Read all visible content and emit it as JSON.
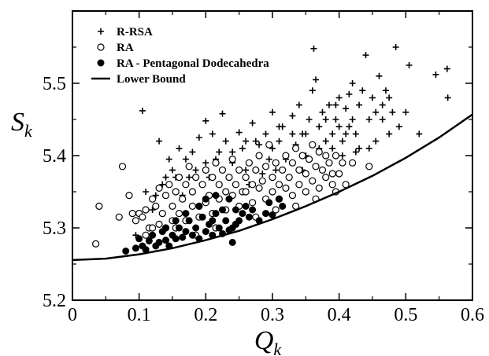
{
  "chart_data": {
    "type": "scatter",
    "title": "",
    "xlabel": "Q",
    "xlabel_sub": "k",
    "ylabel": "S",
    "ylabel_sub": "k",
    "xlim": [
      0,
      0.6
    ],
    "ylim": [
      5.2,
      5.6
    ],
    "xticks": [
      0,
      0.1,
      0.2,
      0.3,
      0.4,
      0.5,
      0.6
    ],
    "xtick_labels": [
      "0",
      "0.1",
      "0.2",
      "0.3",
      "0.4",
      "0.5",
      "0.6"
    ],
    "yticks": [
      5.2,
      5.3,
      5.4,
      5.5
    ],
    "ytick_labels": [
      "5.2",
      "5.3",
      "5.4",
      "5.5"
    ],
    "grid": false,
    "legend_position": "top-left",
    "series": [
      {
        "name": "R-RSA",
        "marker": "plus",
        "color": "#000000",
        "points": [
          [
            0.105,
            5.462
          ],
          [
            0.13,
            5.42
          ],
          [
            0.145,
            5.395
          ],
          [
            0.16,
            5.41
          ],
          [
            0.175,
            5.37
          ],
          [
            0.18,
            5.405
          ],
          [
            0.19,
            5.425
          ],
          [
            0.2,
            5.448
          ],
          [
            0.21,
            5.43
          ],
          [
            0.215,
            5.395
          ],
          [
            0.225,
            5.458
          ],
          [
            0.23,
            5.42
          ],
          [
            0.24,
            5.39
          ],
          [
            0.25,
            5.432
          ],
          [
            0.255,
            5.41
          ],
          [
            0.26,
            5.38
          ],
          [
            0.27,
            5.445
          ],
          [
            0.275,
            5.42
          ],
          [
            0.28,
            5.4
          ],
          [
            0.29,
            5.43
          ],
          [
            0.295,
            5.395
          ],
          [
            0.3,
            5.46
          ],
          [
            0.31,
            5.42
          ],
          [
            0.315,
            5.44
          ],
          [
            0.32,
            5.395
          ],
          [
            0.33,
            5.455
          ],
          [
            0.335,
            5.415
          ],
          [
            0.34,
            5.47
          ],
          [
            0.345,
            5.43
          ],
          [
            0.35,
            5.4
          ],
          [
            0.355,
            5.45
          ],
          [
            0.36,
            5.49
          ],
          [
            0.362,
            5.548
          ],
          [
            0.365,
            5.505
          ],
          [
            0.37,
            5.44
          ],
          [
            0.375,
            5.46
          ],
          [
            0.38,
            5.42
          ],
          [
            0.385,
            5.47
          ],
          [
            0.39,
            5.43
          ],
          [
            0.395,
            5.45
          ],
          [
            0.4,
            5.48
          ],
          [
            0.405,
            5.42
          ],
          [
            0.41,
            5.465
          ],
          [
            0.415,
            5.44
          ],
          [
            0.42,
            5.5
          ],
          [
            0.425,
            5.43
          ],
          [
            0.43,
            5.47
          ],
          [
            0.435,
            5.49
          ],
          [
            0.44,
            5.539
          ],
          [
            0.445,
            5.45
          ],
          [
            0.45,
            5.48
          ],
          [
            0.455,
            5.42
          ],
          [
            0.46,
            5.51
          ],
          [
            0.465,
            5.45
          ],
          [
            0.47,
            5.49
          ],
          [
            0.475,
            5.43
          ],
          [
            0.48,
            5.46
          ],
          [
            0.485,
            5.55
          ],
          [
            0.49,
            5.44
          ],
          [
            0.505,
            5.525
          ],
          [
            0.52,
            5.43
          ],
          [
            0.545,
            5.512
          ],
          [
            0.562,
            5.52
          ],
          [
            0.563,
            5.48
          ],
          [
            0.11,
            5.35
          ],
          [
            0.12,
            5.325
          ],
          [
            0.135,
            5.36
          ],
          [
            0.15,
            5.38
          ],
          [
            0.165,
            5.345
          ],
          [
            0.185,
            5.38
          ],
          [
            0.205,
            5.37
          ],
          [
            0.235,
            5.37
          ],
          [
            0.265,
            5.36
          ],
          [
            0.285,
            5.375
          ],
          [
            0.305,
            5.38
          ],
          [
            0.325,
            5.37
          ],
          [
            0.345,
            5.38
          ],
          [
            0.365,
            5.385
          ],
          [
            0.385,
            5.39
          ],
          [
            0.405,
            5.4
          ],
          [
            0.425,
            5.405
          ],
          [
            0.445,
            5.41
          ],
          [
            0.39,
            5.41
          ],
          [
            0.4,
            5.44
          ],
          [
            0.41,
            5.43
          ],
          [
            0.42,
            5.45
          ],
          [
            0.43,
            5.41
          ],
          [
            0.37,
            5.41
          ],
          [
            0.38,
            5.45
          ],
          [
            0.395,
            5.47
          ],
          [
            0.415,
            5.485
          ],
          [
            0.455,
            5.46
          ],
          [
            0.465,
            5.47
          ],
          [
            0.475,
            5.48
          ],
          [
            0.5,
            5.46
          ],
          [
            0.35,
            5.43
          ],
          [
            0.33,
            5.43
          ],
          [
            0.31,
            5.44
          ],
          [
            0.3,
            5.41
          ],
          [
            0.28,
            5.415
          ],
          [
            0.26,
            5.42
          ],
          [
            0.24,
            5.405
          ],
          [
            0.22,
            5.405
          ],
          [
            0.2,
            5.39
          ],
          [
            0.17,
            5.395
          ],
          [
            0.155,
            5.37
          ],
          [
            0.14,
            5.37
          ],
          [
            0.125,
            5.345
          ],
          [
            0.095,
            5.29
          ]
        ]
      },
      {
        "name": "RA",
        "marker": "open-circle",
        "color": "#000000",
        "points": [
          [
            0.035,
            5.278
          ],
          [
            0.04,
            5.33
          ],
          [
            0.075,
            5.385
          ],
          [
            0.07,
            5.315
          ],
          [
            0.09,
            5.32
          ],
          [
            0.1,
            5.32
          ],
          [
            0.085,
            5.345
          ],
          [
            0.095,
            5.31
          ],
          [
            0.105,
            5.315
          ],
          [
            0.11,
            5.325
          ],
          [
            0.115,
            5.3
          ],
          [
            0.12,
            5.34
          ],
          [
            0.125,
            5.33
          ],
          [
            0.13,
            5.355
          ],
          [
            0.135,
            5.32
          ],
          [
            0.14,
            5.345
          ],
          [
            0.145,
            5.36
          ],
          [
            0.15,
            5.33
          ],
          [
            0.155,
            5.35
          ],
          [
            0.16,
            5.37
          ],
          [
            0.165,
            5.34
          ],
          [
            0.17,
            5.36
          ],
          [
            0.175,
            5.385
          ],
          [
            0.18,
            5.35
          ],
          [
            0.185,
            5.37
          ],
          [
            0.19,
            5.33
          ],
          [
            0.195,
            5.36
          ],
          [
            0.2,
            5.38
          ],
          [
            0.205,
            5.345
          ],
          [
            0.21,
            5.37
          ],
          [
            0.215,
            5.39
          ],
          [
            0.22,
            5.36
          ],
          [
            0.225,
            5.38
          ],
          [
            0.23,
            5.35
          ],
          [
            0.235,
            5.37
          ],
          [
            0.24,
            5.395
          ],
          [
            0.245,
            5.36
          ],
          [
            0.25,
            5.38
          ],
          [
            0.255,
            5.35
          ],
          [
            0.26,
            5.37
          ],
          [
            0.265,
            5.39
          ],
          [
            0.27,
            5.36
          ],
          [
            0.275,
            5.38
          ],
          [
            0.28,
            5.4
          ],
          [
            0.285,
            5.365
          ],
          [
            0.29,
            5.385
          ],
          [
            0.295,
            5.415
          ],
          [
            0.3,
            5.37
          ],
          [
            0.305,
            5.39
          ],
          [
            0.31,
            5.36
          ],
          [
            0.315,
            5.38
          ],
          [
            0.32,
            5.4
          ],
          [
            0.325,
            5.37
          ],
          [
            0.33,
            5.39
          ],
          [
            0.335,
            5.41
          ],
          [
            0.34,
            5.38
          ],
          [
            0.345,
            5.4
          ],
          [
            0.35,
            5.375
          ],
          [
            0.355,
            5.395
          ],
          [
            0.36,
            5.415
          ],
          [
            0.365,
            5.385
          ],
          [
            0.37,
            5.405
          ],
          [
            0.375,
            5.38
          ],
          [
            0.38,
            5.4
          ],
          [
            0.385,
            5.39
          ],
          [
            0.39,
            5.375
          ],
          [
            0.395,
            5.4
          ],
          [
            0.41,
            5.36
          ],
          [
            0.42,
            5.39
          ],
          [
            0.445,
            5.385
          ],
          [
            0.14,
            5.3
          ],
          [
            0.15,
            5.31
          ],
          [
            0.16,
            5.32
          ],
          [
            0.17,
            5.31
          ],
          [
            0.18,
            5.33
          ],
          [
            0.19,
            5.315
          ],
          [
            0.2,
            5.335
          ],
          [
            0.21,
            5.32
          ],
          [
            0.22,
            5.34
          ],
          [
            0.23,
            5.325
          ],
          [
            0.24,
            5.345
          ],
          [
            0.25,
            5.33
          ],
          [
            0.26,
            5.35
          ],
          [
            0.27,
            5.335
          ],
          [
            0.28,
            5.355
          ],
          [
            0.29,
            5.34
          ],
          [
            0.3,
            5.35
          ],
          [
            0.31,
            5.34
          ],
          [
            0.32,
            5.355
          ],
          [
            0.33,
            5.345
          ],
          [
            0.34,
            5.36
          ],
          [
            0.35,
            5.35
          ],
          [
            0.36,
            5.365
          ],
          [
            0.37,
            5.355
          ],
          [
            0.38,
            5.37
          ],
          [
            0.39,
            5.36
          ],
          [
            0.4,
            5.375
          ],
          [
            0.405,
            5.39
          ],
          [
            0.13,
            5.305
          ],
          [
            0.12,
            5.3
          ],
          [
            0.11,
            5.29
          ],
          [
            0.185,
            5.29
          ],
          [
            0.215,
            5.3
          ],
          [
            0.245,
            5.305
          ],
          [
            0.275,
            5.315
          ],
          [
            0.305,
            5.325
          ],
          [
            0.335,
            5.33
          ],
          [
            0.365,
            5.34
          ],
          [
            0.395,
            5.35
          ],
          [
            0.155,
            5.3
          ]
        ]
      },
      {
        "name": "RA - Pentagonal Dodecahedra",
        "marker": "filled-circle",
        "color": "#000000",
        "points": [
          [
            0.08,
            5.268
          ],
          [
            0.095,
            5.272
          ],
          [
            0.1,
            5.285
          ],
          [
            0.105,
            5.275
          ],
          [
            0.11,
            5.27
          ],
          [
            0.115,
            5.282
          ],
          [
            0.12,
            5.29
          ],
          [
            0.125,
            5.275
          ],
          [
            0.13,
            5.28
          ],
          [
            0.135,
            5.295
          ],
          [
            0.14,
            5.283
          ],
          [
            0.145,
            5.275
          ],
          [
            0.15,
            5.29
          ],
          [
            0.155,
            5.285
          ],
          [
            0.16,
            5.3
          ],
          [
            0.165,
            5.287
          ],
          [
            0.17,
            5.295
          ],
          [
            0.175,
            5.31
          ],
          [
            0.18,
            5.29
          ],
          [
            0.185,
            5.3
          ],
          [
            0.19,
            5.285
          ],
          [
            0.195,
            5.315
          ],
          [
            0.2,
            5.295
          ],
          [
            0.205,
            5.305
          ],
          [
            0.21,
            5.29
          ],
          [
            0.215,
            5.32
          ],
          [
            0.22,
            5.3
          ],
          [
            0.225,
            5.292
          ],
          [
            0.23,
            5.31
          ],
          [
            0.235,
            5.297
          ],
          [
            0.24,
            5.3
          ],
          [
            0.245,
            5.305
          ],
          [
            0.25,
            5.31
          ],
          [
            0.255,
            5.32
          ],
          [
            0.26,
            5.33
          ],
          [
            0.265,
            5.315
          ],
          [
            0.27,
            5.325
          ],
          [
            0.28,
            5.31
          ],
          [
            0.29,
            5.32
          ],
          [
            0.295,
            5.335
          ],
          [
            0.3,
            5.318
          ],
          [
            0.31,
            5.34
          ],
          [
            0.315,
            5.33
          ],
          [
            0.19,
            5.33
          ],
          [
            0.2,
            5.34
          ],
          [
            0.17,
            5.32
          ],
          [
            0.215,
            5.345
          ],
          [
            0.235,
            5.34
          ],
          [
            0.155,
            5.31
          ],
          [
            0.21,
            5.31
          ],
          [
            0.225,
            5.325
          ],
          [
            0.245,
            5.325
          ],
          [
            0.14,
            5.3
          ],
          [
            0.24,
            5.28
          ]
        ]
      },
      {
        "name": "Lower Bound",
        "marker": "line",
        "color": "#000000",
        "points": [
          [
            0,
            5.2555
          ],
          [
            0.05,
            5.2575
          ],
          [
            0.1,
            5.2635
          ],
          [
            0.15,
            5.272
          ],
          [
            0.2,
            5.283
          ],
          [
            0.25,
            5.296
          ],
          [
            0.3,
            5.312
          ],
          [
            0.35,
            5.33
          ],
          [
            0.4,
            5.35
          ],
          [
            0.45,
            5.372
          ],
          [
            0.5,
            5.397
          ],
          [
            0.55,
            5.425
          ],
          [
            0.6,
            5.457
          ]
        ]
      }
    ]
  }
}
